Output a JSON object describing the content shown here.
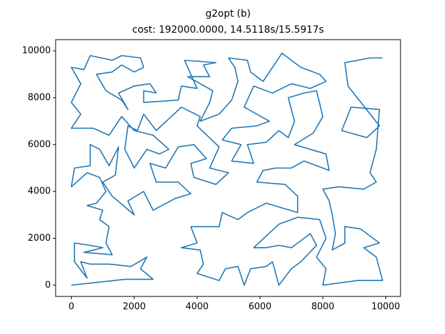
{
  "chart_data": {
    "type": "line",
    "title": "g2opt (b)",
    "subtitle": "cost: 192000.0000, 14.5118s/15.5917s",
    "x": [
      0,
      1700,
      2600,
      2200,
      2400,
      1900,
      1200,
      600,
      300,
      500,
      100,
      100,
      600,
      1000,
      400,
      1300,
      1100,
      1200,
      900,
      1000,
      500,
      800,
      1100,
      900,
      500,
      0,
      100,
      600,
      600,
      900,
      1200,
      1500,
      1400,
      1000,
      1300,
      2000,
      1800,
      2300,
      2600,
      3300,
      3800,
      3400,
      2700,
      2500,
      3000,
      3400,
      3900,
      4300,
      3800,
      3900,
      4600,
      5000,
      4400,
      4700,
      4000,
      4100,
      3500,
      3100,
      2700,
      2300,
      2100,
      1800,
      1700,
      2000,
      2400,
      2800,
      3100,
      2600,
      2000,
      1600,
      1200,
      700,
      0,
      300,
      0,
      300,
      0,
      400,
      600,
      1300,
      1600,
      2200,
      2300,
      2000,
      1600,
      1300,
      800,
      1100,
      1600,
      1800,
      1500,
      2000,
      2500,
      2700,
      2300,
      2300,
      3400,
      3500,
      4000,
      3600,
      4600,
      4200,
      4400,
      3700,
      4500,
      4400,
      4100,
      4700,
      5100,
      5300,
      5200,
      5000,
      5600,
      5700,
      6100,
      6700,
      7300,
      7900,
      8100,
      7600,
      7000,
      6400,
      5800,
      5500,
      6300,
      5900,
      5100,
      4800,
      5400,
      5100,
      5800,
      5600,
      6200,
      6600,
      6900,
      7100,
      6900,
      7400,
      7800,
      8000,
      7700,
      7100,
      8100,
      8200,
      7400,
      7000,
      6500,
      6100,
      5900,
      6800,
      7200,
      7200,
      6200,
      5600,
      5300,
      4800,
      4700,
      3800,
      4000,
      3500,
      4100,
      4200,
      4000,
      4700,
      4900,
      5300,
      5500,
      5700,
      6200,
      6400,
      6600,
      7000,
      7300,
      7800,
      7600,
      7000,
      6600,
      6200,
      5800,
      6200,
      6600,
      7200,
      7900,
      8100,
      7800,
      8100,
      8000,
      9100,
      9900,
      9700,
      9300,
      9800,
      9200,
      8700,
      8700,
      8300,
      8400,
      8300,
      8200,
      8000,
      8500,
      9300,
      9700,
      9500,
      9700,
      9800,
      8900,
      8600,
      9400,
      9800,
      8800,
      8700,
      9500,
      9900
    ],
    "values": [
      0,
      250,
      250,
      700,
      1200,
      800,
      900,
      900,
      1000,
      300,
      1000,
      1800,
      1700,
      1600,
      1400,
      1300,
      1800,
      2500,
      2800,
      3200,
      3400,
      3500,
      4000,
      4600,
      4800,
      4200,
      5000,
      5100,
      6000,
      5800,
      5100,
      5900,
      4700,
      4400,
      3800,
      3000,
      3600,
      4000,
      3200,
      3700,
      3900,
      4400,
      4400,
      5200,
      5000,
      5900,
      6000,
      5400,
      5200,
      4600,
      4300,
      4800,
      5000,
      5900,
      6800,
      7200,
      7600,
      7100,
      6600,
      7300,
      6600,
      6800,
      5800,
      5000,
      5800,
      5600,
      5800,
      6400,
      6600,
      7200,
      6400,
      6700,
      6700,
      7300,
      7800,
      8600,
      9300,
      9200,
      9800,
      9600,
      9800,
      9700,
      9300,
      9100,
      9400,
      9100,
      9000,
      8300,
      7900,
      7500,
      8200,
      8500,
      8600,
      8200,
      8300,
      7800,
      7900,
      8500,
      8400,
      9600,
      9500,
      9400,
      8900,
      8900,
      8300,
      7800,
      7000,
      7300,
      7900,
      8700,
      9300,
      9700,
      9600,
      9100,
      8700,
      9900,
      9300,
      9000,
      8700,
      8400,
      8600,
      8200,
      8500,
      7600,
      7000,
      6800,
      6700,
      6200,
      6000,
      5300,
      5200,
      6000,
      6100,
      6600,
      6300,
      7000,
      8000,
      8200,
      8300,
      7200,
      6500,
      6000,
      5600,
      4900,
      5300,
      5000,
      5000,
      4900,
      4400,
      4300,
      3800,
      3100,
      3500,
      3100,
      2800,
      3100,
      2500,
      2500,
      1800,
      1600,
      1500,
      900,
      500,
      200,
      700,
      800,
      0,
      700,
      800,
      1000,
      0,
      700,
      1000,
      1700,
      2200,
      1600,
      1700,
      1600,
      1600,
      2100,
      2600,
      2900,
      2800,
      2000,
      1200,
      700,
      0,
      200,
      200,
      1200,
      1600,
      1800,
      2400,
      2500,
      1800,
      1500,
      2200,
      3000,
      3600,
      4100,
      4200,
      4100,
      4400,
      4800,
      5800,
      7500,
      7600,
      6600,
      6300,
      6800,
      8500,
      9500,
      9700,
      9700
    ],
    "color": "#1f77b4",
    "xlim": [
      -500,
      10470
    ],
    "ylim": [
      -480,
      10480
    ],
    "xticks": [
      0,
      2000,
      4000,
      6000,
      8000,
      10000
    ],
    "yticks": [
      0,
      2000,
      4000,
      6000,
      8000,
      10000
    ]
  }
}
